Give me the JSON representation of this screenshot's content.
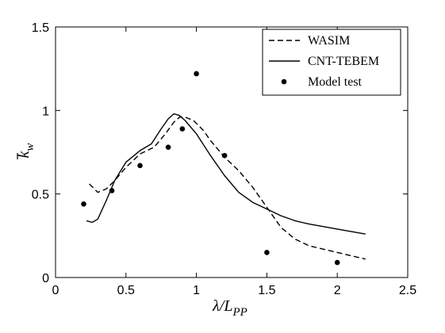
{
  "chart_data": {
    "type": "line",
    "xlabel": "λ/L",
    "xlabel_sub": "PP",
    "ylabel": "k",
    "ylabel_sub": "w",
    "xlim": [
      0,
      2.5
    ],
    "ylim": [
      0,
      1.5
    ],
    "xticks": [
      0,
      0.5,
      1,
      1.5,
      2,
      2.5
    ],
    "yticks": [
      0,
      0.5,
      1,
      1.5
    ],
    "xtick_labels": [
      "0",
      "0.5",
      "1",
      "1.5",
      "2",
      "2.5"
    ],
    "ytick_labels": [
      "0",
      "0.5",
      "1",
      "1.5"
    ],
    "grid": false,
    "legend_position": "top-right",
    "series": [
      {
        "name": "WASIM",
        "style": "dashed",
        "color": "#000000",
        "points": [
          [
            0.24,
            0.56
          ],
          [
            0.3,
            0.51
          ],
          [
            0.36,
            0.53
          ],
          [
            0.42,
            0.58
          ],
          [
            0.5,
            0.66
          ],
          [
            0.6,
            0.74
          ],
          [
            0.7,
            0.78
          ],
          [
            0.78,
            0.86
          ],
          [
            0.84,
            0.93
          ],
          [
            0.88,
            0.96
          ],
          [
            0.92,
            0.96
          ],
          [
            0.98,
            0.94
          ],
          [
            1.05,
            0.88
          ],
          [
            1.1,
            0.82
          ],
          [
            1.2,
            0.72
          ],
          [
            1.3,
            0.64
          ],
          [
            1.4,
            0.54
          ],
          [
            1.5,
            0.42
          ],
          [
            1.6,
            0.3
          ],
          [
            1.7,
            0.23
          ],
          [
            1.8,
            0.19
          ],
          [
            2.0,
            0.15
          ],
          [
            2.2,
            0.11
          ]
        ]
      },
      {
        "name": "CNT-TEBEM",
        "style": "solid",
        "color": "#000000",
        "points": [
          [
            0.22,
            0.34
          ],
          [
            0.26,
            0.33
          ],
          [
            0.3,
            0.35
          ],
          [
            0.36,
            0.46
          ],
          [
            0.42,
            0.58
          ],
          [
            0.5,
            0.69
          ],
          [
            0.6,
            0.76
          ],
          [
            0.68,
            0.8
          ],
          [
            0.75,
            0.89
          ],
          [
            0.8,
            0.95
          ],
          [
            0.84,
            0.98
          ],
          [
            0.88,
            0.97
          ],
          [
            0.92,
            0.94
          ],
          [
            1.0,
            0.86
          ],
          [
            1.1,
            0.73
          ],
          [
            1.2,
            0.61
          ],
          [
            1.3,
            0.51
          ],
          [
            1.4,
            0.45
          ],
          [
            1.5,
            0.41
          ],
          [
            1.6,
            0.37
          ],
          [
            1.7,
            0.34
          ],
          [
            1.8,
            0.32
          ],
          [
            2.0,
            0.29
          ],
          [
            2.2,
            0.26
          ]
        ]
      },
      {
        "name": "Model test",
        "style": "markers",
        "color": "#000000",
        "points": [
          [
            0.2,
            0.44
          ],
          [
            0.4,
            0.52
          ],
          [
            0.6,
            0.67
          ],
          [
            0.8,
            0.78
          ],
          [
            0.9,
            0.89
          ],
          [
            1.0,
            1.22
          ],
          [
            1.2,
            0.73
          ],
          [
            1.5,
            0.15
          ],
          [
            2.0,
            0.09
          ]
        ]
      }
    ]
  }
}
